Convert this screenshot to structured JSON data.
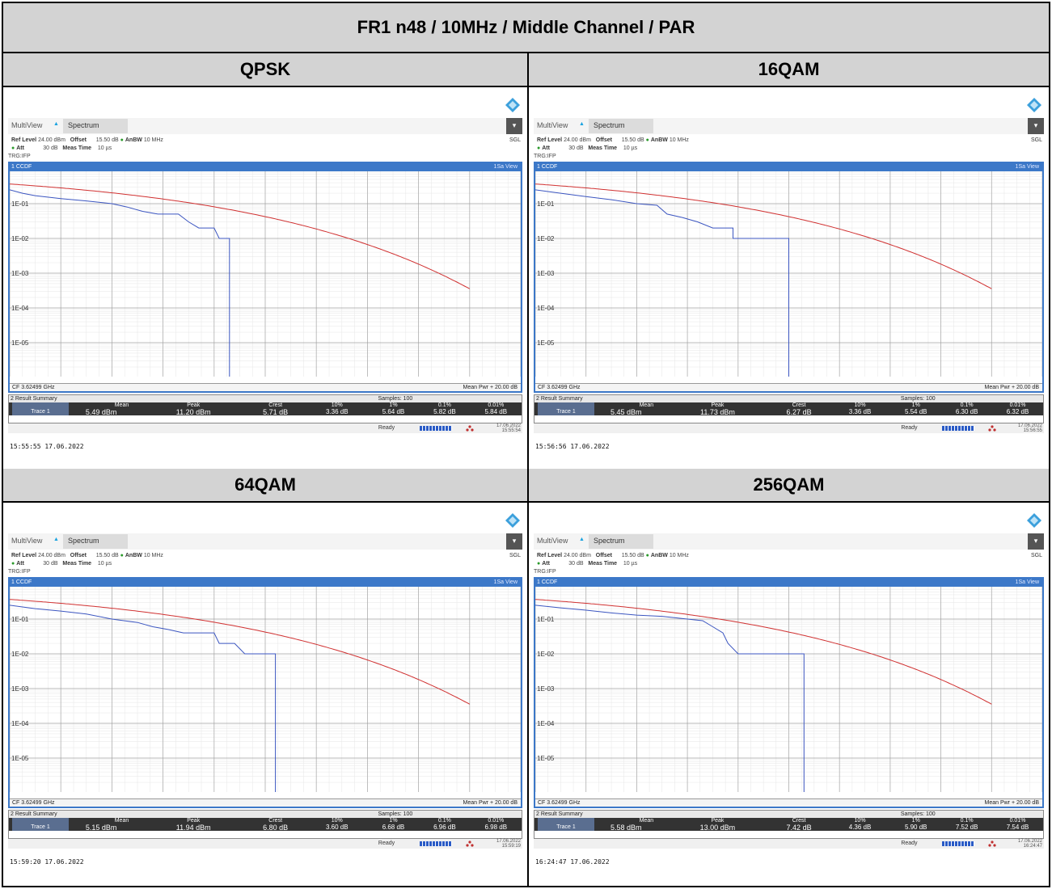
{
  "title": "FR1 n48 / 10MHz / Middle Channel / PAR",
  "colors": {
    "header_bg": "#d3d3d3",
    "grid_frame": "#3c78c8",
    "trace_blue": "#3b55c0",
    "trace_red": "#d03030"
  },
  "common": {
    "tab_multiview": "MultiView",
    "tab_spectrum": "Spectrum",
    "sgl": "SGL",
    "ref_level_label": "Ref Level",
    "ref_level_value": "24.00 dBm",
    "offset_label": "Offset",
    "offset_value": "15.50 dB",
    "anbw_label": "AnBW",
    "anbw_value": "10 MHz",
    "att_label": "Att",
    "att_value": "30 dB",
    "meas_time_label": "Meas Time",
    "meas_time_value": "10 µs",
    "trg_label": "TRG:IFP",
    "plot_title": "1 CCDF",
    "view_label": "1Sa View",
    "y_ticks": [
      "1E-01",
      "1E-02",
      "1E-03",
      "1E-04",
      "1E-05"
    ],
    "cf_label": "CF 3.62499 GHz",
    "mean_pwr_label": "Mean Pwr + 20.00 dB",
    "result_title": "2 Result Summary",
    "samples_label": "Samples: 100",
    "col_mean": "Mean",
    "col_peak": "Peak",
    "col_crest": "Crest",
    "col_10": "10%",
    "col_1": "1%",
    "col_01": "0.1%",
    "col_001": "0.01%",
    "trace_label": "Trace 1",
    "ready_label": "Ready"
  },
  "panels": [
    {
      "modulation": "QPSK",
      "mean": "5.49 dBm",
      "peak": "11.20 dBm",
      "crest": "5.71 dB",
      "p10": "3.36 dB",
      "p1": "5.64 dB",
      "p01": "5.82 dB",
      "p001": "5.84 dB",
      "stamp_date": "17.06.2022",
      "stamp_time": "15:55:54",
      "timestamp": "15:55:55  17.06.2022",
      "steps": [
        [
          0,
          0.25
        ],
        [
          0.25,
          0.2
        ],
        [
          0.5,
          0.17
        ],
        [
          1,
          0.14
        ],
        [
          1.5,
          0.12
        ],
        [
          2,
          0.1
        ],
        [
          2.3,
          0.08
        ],
        [
          2.6,
          0.06
        ],
        [
          2.9,
          0.05
        ],
        [
          3.3,
          0.05
        ],
        [
          3.5,
          0.03
        ],
        [
          3.7,
          0.02
        ],
        [
          4.0,
          0.02
        ],
        [
          4.1,
          0.01
        ],
        [
          4.3,
          0.01
        ],
        [
          4.3,
          1e-07
        ]
      ]
    },
    {
      "modulation": "16QAM",
      "mean": "5.45 dBm",
      "peak": "11.73 dBm",
      "crest": "6.27 dB",
      "p10": "3.36 dB",
      "p1": "5.54 dB",
      "p01": "6.30 dB",
      "p001": "6.32 dB",
      "stamp_date": "17.06.2022",
      "stamp_time": "15:56:55",
      "timestamp": "15:56:56  17.06.2022",
      "steps": [
        [
          0,
          0.25
        ],
        [
          0.5,
          0.2
        ],
        [
          1,
          0.16
        ],
        [
          1.5,
          0.13
        ],
        [
          2,
          0.1
        ],
        [
          2.4,
          0.09
        ],
        [
          2.6,
          0.05
        ],
        [
          2.9,
          0.04
        ],
        [
          3.2,
          0.03
        ],
        [
          3.5,
          0.02
        ],
        [
          3.9,
          0.02
        ],
        [
          3.9,
          0.01
        ],
        [
          4.4,
          0.01
        ],
        [
          4.4,
          0.01
        ],
        [
          5.0,
          0.01
        ],
        [
          5.0,
          1e-07
        ]
      ]
    },
    {
      "modulation": "64QAM",
      "mean": "5.15 dBm",
      "peak": "11.94 dBm",
      "crest": "6.80 dB",
      "p10": "3.60 dB",
      "p1": "6.68 dB",
      "p01": "6.96 dB",
      "p001": "6.98 dB",
      "stamp_date": "17.06.2022",
      "stamp_time": "15:59:19",
      "timestamp": "15:59:20  17.06.2022",
      "steps": [
        [
          0,
          0.25
        ],
        [
          0.5,
          0.2
        ],
        [
          1,
          0.17
        ],
        [
          1.5,
          0.14
        ],
        [
          2,
          0.1
        ],
        [
          2.5,
          0.08
        ],
        [
          2.8,
          0.06
        ],
        [
          3.1,
          0.05
        ],
        [
          3.4,
          0.04
        ],
        [
          4.0,
          0.04
        ],
        [
          4.1,
          0.02
        ],
        [
          4.4,
          0.02
        ],
        [
          4.6,
          0.01
        ],
        [
          5.2,
          0.01
        ],
        [
          5.2,
          1e-07
        ]
      ]
    },
    {
      "modulation": "256QAM",
      "mean": "5.58 dBm",
      "peak": "13.00 dBm",
      "crest": "7.42 dB",
      "p10": "4.36 dB",
      "p1": "5.90 dB",
      "p01": "7.52 dB",
      "p001": "7.54 dB",
      "stamp_date": "17.06.2022",
      "stamp_time": "16:24:47",
      "timestamp": "16:24:47  17.06.2022",
      "steps": [
        [
          0,
          0.25
        ],
        [
          0.5,
          0.21
        ],
        [
          1,
          0.18
        ],
        [
          1.5,
          0.15
        ],
        [
          2,
          0.13
        ],
        [
          2.5,
          0.12
        ],
        [
          3.0,
          0.1
        ],
        [
          3.3,
          0.09
        ],
        [
          3.5,
          0.06
        ],
        [
          3.7,
          0.04
        ],
        [
          3.8,
          0.02
        ],
        [
          4.0,
          0.01
        ],
        [
          5.0,
          0.01
        ],
        [
          5.2,
          0.01
        ],
        [
          5.3,
          0.01
        ],
        [
          5.3,
          1e-07
        ]
      ]
    }
  ]
}
